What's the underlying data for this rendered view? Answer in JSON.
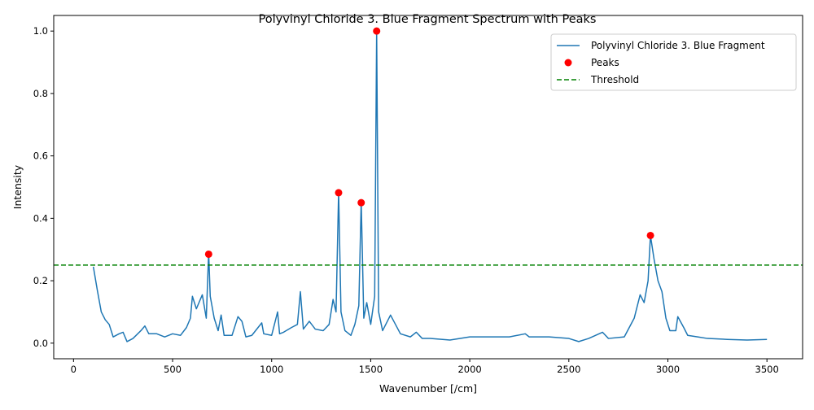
{
  "chart_data": {
    "type": "line",
    "title": "Polyvinyl Chloride 3. Blue Fragment Spectrum with Peaks",
    "xlabel": "Wavenumber [/cm]",
    "ylabel": "Intensity",
    "xlim": [
      -100,
      3680
    ],
    "ylim": [
      -0.05,
      1.05
    ],
    "xticks": [
      0,
      500,
      1000,
      1500,
      2000,
      2500,
      3000,
      3500
    ],
    "yticks": [
      0.0,
      0.2,
      0.4,
      0.6,
      0.8,
      1.0
    ],
    "grid": false,
    "legend_position": "top-right",
    "series": [
      {
        "name": "Polyvinyl Chloride 3. Blue Fragment",
        "color": "#1f77b4",
        "x": [
          100,
          120,
          140,
          160,
          180,
          200,
          230,
          250,
          270,
          300,
          340,
          360,
          380,
          420,
          460,
          500,
          540,
          570,
          590,
          600,
          620,
          650,
          670,
          682,
          690,
          710,
          730,
          745,
          760,
          800,
          830,
          850,
          870,
          900,
          950,
          960,
          1000,
          1030,
          1040,
          1060,
          1100,
          1130,
          1145,
          1160,
          1190,
          1220,
          1260,
          1290,
          1310,
          1325,
          1338,
          1350,
          1370,
          1400,
          1420,
          1440,
          1452,
          1465,
          1480,
          1500,
          1520,
          1530,
          1540,
          1560,
          1600,
          1650,
          1700,
          1730,
          1760,
          1800,
          1900,
          2000,
          2100,
          2200,
          2280,
          2300,
          2400,
          2500,
          2550,
          2600,
          2670,
          2700,
          2780,
          2830,
          2860,
          2880,
          2900,
          2912,
          2930,
          2950,
          2970,
          2990,
          3010,
          3040,
          3050,
          3080,
          3100,
          3150,
          3200,
          3300,
          3400,
          3500
        ],
        "values": [
          0.245,
          0.17,
          0.1,
          0.075,
          0.06,
          0.02,
          0.03,
          0.035,
          0.005,
          0.015,
          0.04,
          0.055,
          0.03,
          0.03,
          0.02,
          0.03,
          0.025,
          0.05,
          0.08,
          0.15,
          0.11,
          0.155,
          0.08,
          0.29,
          0.15,
          0.08,
          0.04,
          0.09,
          0.025,
          0.025,
          0.085,
          0.07,
          0.02,
          0.025,
          0.065,
          0.03,
          0.025,
          0.1,
          0.03,
          0.035,
          0.05,
          0.06,
          0.165,
          0.045,
          0.07,
          0.045,
          0.04,
          0.06,
          0.14,
          0.1,
          0.485,
          0.1,
          0.04,
          0.025,
          0.06,
          0.12,
          0.455,
          0.08,
          0.13,
          0.06,
          0.15,
          1.0,
          0.1,
          0.04,
          0.09,
          0.03,
          0.02,
          0.035,
          0.015,
          0.015,
          0.01,
          0.02,
          0.02,
          0.02,
          0.03,
          0.02,
          0.02,
          0.015,
          0.005,
          0.015,
          0.035,
          0.015,
          0.02,
          0.08,
          0.155,
          0.13,
          0.2,
          0.345,
          0.27,
          0.2,
          0.165,
          0.08,
          0.04,
          0.04,
          0.085,
          0.05,
          0.025,
          0.02,
          0.015,
          0.012,
          0.01,
          0.012
        ]
      },
      {
        "name": "Peaks",
        "type": "scatter",
        "color": "#ff0000",
        "x": [
          682,
          1338,
          1452,
          1530,
          2912
        ],
        "values": [
          0.285,
          0.482,
          0.45,
          1.0,
          0.345
        ]
      },
      {
        "name": "Threshold",
        "type": "hline",
        "color": "#008000",
        "value": 0.25
      }
    ]
  }
}
